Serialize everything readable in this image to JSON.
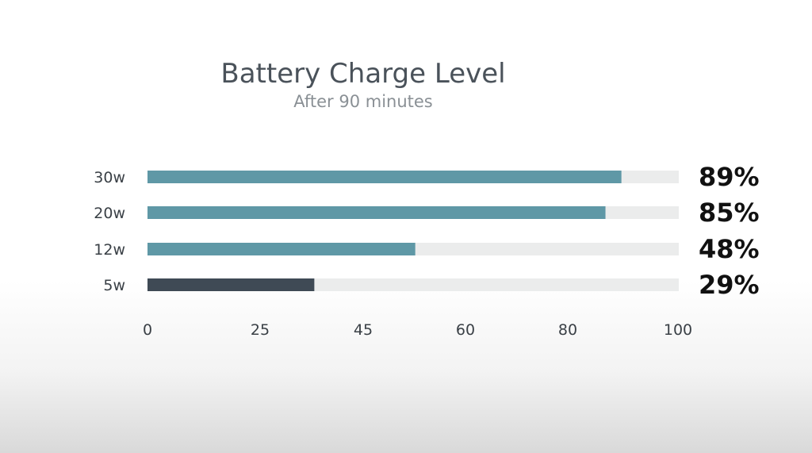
{
  "chart_data": {
    "type": "bar",
    "orientation": "horizontal",
    "title": "Battery Charge Level",
    "subtitle": "After 90 minutes",
    "categories": [
      "30w",
      "20w",
      "12w",
      "5w"
    ],
    "values": [
      89,
      85,
      48,
      29
    ],
    "value_labels": [
      "89%",
      "85%",
      "48%",
      "29%"
    ],
    "xlim": [
      0,
      100
    ],
    "x_ticks": [
      0,
      25,
      45,
      60,
      80,
      100
    ],
    "x_tick_labels": [
      "0",
      "25",
      "45",
      "60",
      "80",
      "100"
    ],
    "grid": false,
    "colors": {
      "bar": "#5f98a6",
      "bar_highlight": "#3f4a55",
      "track": "#ebecec"
    },
    "bar_fill_fraction": [
      0.892,
      0.862,
      0.504,
      0.314
    ],
    "highlight_index": 3
  }
}
